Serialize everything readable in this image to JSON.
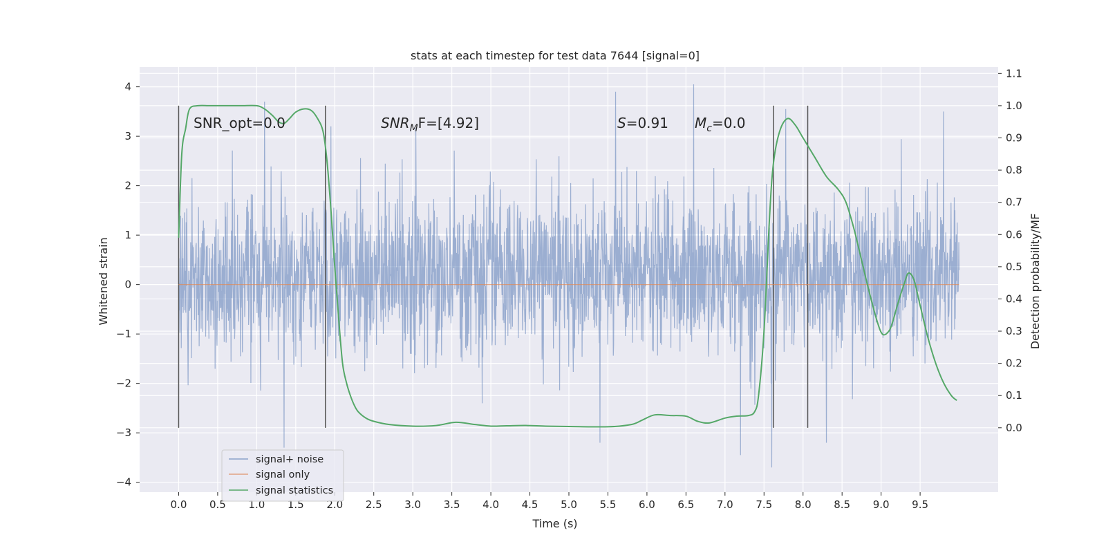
{
  "chart_data": {
    "type": "line",
    "title": "stats at each timestep for test data 7644 [signal=0]",
    "xlabel": "Time (s)",
    "ylabel": "Whitened strain",
    "ylabel_right": "Detection probability/MF",
    "xlim": [
      -0.5,
      10.5
    ],
    "ylim": [
      -4.2,
      4.4
    ],
    "ylim_right": [
      -0.2,
      1.12
    ],
    "x_ticks": [
      "0.0",
      "0.5",
      "1.0",
      "1.5",
      "2.0",
      "2.5",
      "3.0",
      "3.5",
      "4.0",
      "4.5",
      "5.0",
      "5.5",
      "6.0",
      "6.5",
      "7.0",
      "7.5",
      "8.0",
      "8.5",
      "9.0",
      "9.5"
    ],
    "y_ticks": [
      "4",
      "3",
      "2",
      "1",
      "0",
      "−1",
      "−2",
      "−3",
      "−4"
    ],
    "y_ticks_right": [
      "1.1",
      "1.0",
      "0.9",
      "0.8",
      "0.7",
      "0.6",
      "0.5",
      "0.4",
      "0.3",
      "0.2",
      "0.1",
      "0.0"
    ],
    "grid": true,
    "legend_position": "lower-left",
    "legend": [
      "signal+ noise",
      "signal only",
      "signal statistics"
    ],
    "annotations": {
      "snr_opt": "SNR_opt=0.0",
      "snr_mf_main": "SNR",
      "snr_mf_sub": "M",
      "snr_mf_rest": "F=[4.92]",
      "s_main": "S",
      "s_rest": "=0.91",
      "mc_main": "M",
      "mc_sub": "c",
      "mc_rest": "=0.0"
    },
    "vertical_markers": [
      0.0,
      1.88,
      7.62,
      8.06
    ],
    "series": [
      {
        "name": "signal+ noise",
        "color": "#4c72b0",
        "axis": "left",
        "x_range": [
          0.0,
          10.0
        ],
        "typical_envelope": [
          -1.8,
          2.4
        ],
        "peaks": [
          {
            "x": 1.1,
            "y": 3.7
          },
          {
            "x": 1.35,
            "y": -3.3
          },
          {
            "x": 1.95,
            "y": 3.2
          },
          {
            "x": 5.6,
            "y": 3.9
          },
          {
            "x": 6.6,
            "y": 4.05
          },
          {
            "x": 7.6,
            "y": -3.7
          },
          {
            "x": 7.78,
            "y": 3.55
          },
          {
            "x": 9.8,
            "y": 3.5
          },
          {
            "x": 7.2,
            "y": -3.45
          },
          {
            "x": 8.3,
            "y": -3.2
          },
          {
            "x": 5.4,
            "y": -3.2
          }
        ]
      },
      {
        "name": "signal only",
        "color": "#dd8452",
        "axis": "left",
        "x": [
          0.0,
          10.0
        ],
        "y": [
          0.0,
          0.0
        ]
      },
      {
        "name": "signal statistics",
        "color": "#55a868",
        "axis": "right",
        "x": [
          0.0,
          0.04,
          0.09,
          0.14,
          0.25,
          0.4,
          0.6,
          0.8,
          1.0,
          1.1,
          1.2,
          1.28,
          1.35,
          1.42,
          1.5,
          1.6,
          1.7,
          1.78,
          1.85,
          1.9,
          1.95,
          2.0,
          2.05,
          2.1,
          2.15,
          2.2,
          2.25,
          2.3,
          2.4,
          2.5,
          2.7,
          3.0,
          3.3,
          3.55,
          3.8,
          4.0,
          4.2,
          4.45,
          4.7,
          5.0,
          5.5,
          5.8,
          5.95,
          6.1,
          6.3,
          6.5,
          6.65,
          6.8,
          7.0,
          7.15,
          7.3,
          7.38,
          7.43,
          7.5,
          7.57,
          7.62,
          7.7,
          7.8,
          7.9,
          8.0,
          8.15,
          8.3,
          8.45,
          8.55,
          8.65,
          8.75,
          8.85,
          8.95,
          9.02,
          9.1,
          9.15,
          9.22,
          9.3,
          9.35,
          9.42,
          9.5,
          9.6,
          9.7,
          9.8,
          9.9,
          9.97
        ],
        "y": [
          0.59,
          0.85,
          0.93,
          0.99,
          1.0,
          1.0,
          1.0,
          1.0,
          1.0,
          0.99,
          0.97,
          0.95,
          0.945,
          0.96,
          0.98,
          0.99,
          0.985,
          0.96,
          0.92,
          0.83,
          0.68,
          0.5,
          0.34,
          0.2,
          0.14,
          0.1,
          0.07,
          0.05,
          0.03,
          0.02,
          0.01,
          0.005,
          0.007,
          0.017,
          0.01,
          0.005,
          0.006,
          0.007,
          0.005,
          0.004,
          0.003,
          0.01,
          0.025,
          0.04,
          0.038,
          0.036,
          0.02,
          0.015,
          0.03,
          0.036,
          0.038,
          0.05,
          0.1,
          0.3,
          0.65,
          0.82,
          0.92,
          0.96,
          0.94,
          0.9,
          0.84,
          0.78,
          0.74,
          0.7,
          0.62,
          0.52,
          0.42,
          0.33,
          0.29,
          0.3,
          0.33,
          0.39,
          0.45,
          0.48,
          0.46,
          0.38,
          0.28,
          0.2,
          0.14,
          0.1,
          0.085
        ]
      }
    ]
  }
}
